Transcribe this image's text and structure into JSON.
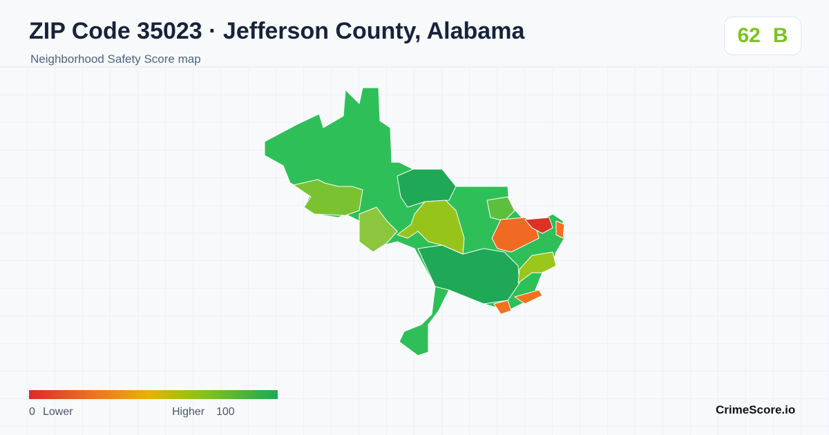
{
  "header": {
    "title": "ZIP Code 35023 · Jefferson County, Alabama",
    "subtitle": "Neighborhood Safety Score map"
  },
  "score": {
    "value": 62,
    "grade": "B"
  },
  "legend": {
    "min": 0,
    "min_label": "Lower",
    "max_label": "Higher",
    "max": 100
  },
  "brand": "CrimeScore.io"
}
